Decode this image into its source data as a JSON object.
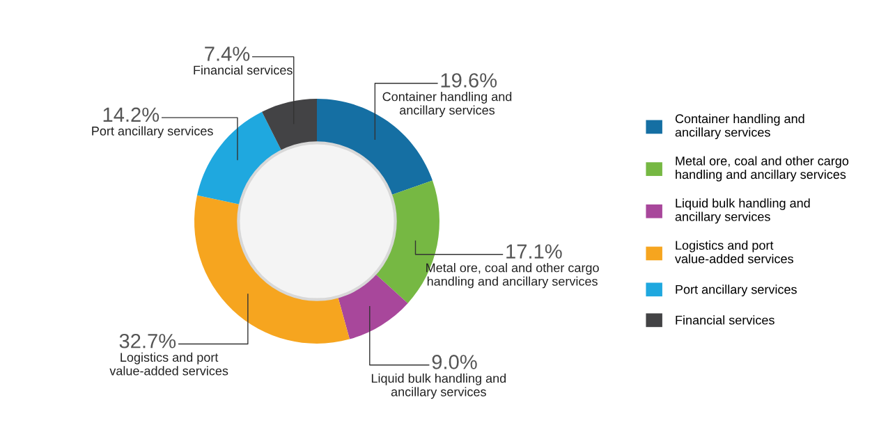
{
  "chart_data": {
    "type": "donut",
    "categories": [
      "Container handling and\nancillary services",
      "Metal ore, coal and other cargo\nhandling and ancillary services",
      "Liquid bulk handling and\nancillary services",
      "Logistics and port\nvalue-added services",
      "Port ancillary services",
      "Financial services"
    ],
    "values": [
      19.6,
      17.1,
      9.0,
      32.7,
      14.2,
      7.4
    ],
    "colors": [
      "#156fa3",
      "#76b843",
      "#a8479b",
      "#f6a51f",
      "#1fa8df",
      "#434345"
    ],
    "value_labels": [
      "19.6%",
      "17.1%",
      "9.0%",
      "32.7%",
      "14.2%",
      "7.4%"
    ],
    "legend": "right"
  }
}
